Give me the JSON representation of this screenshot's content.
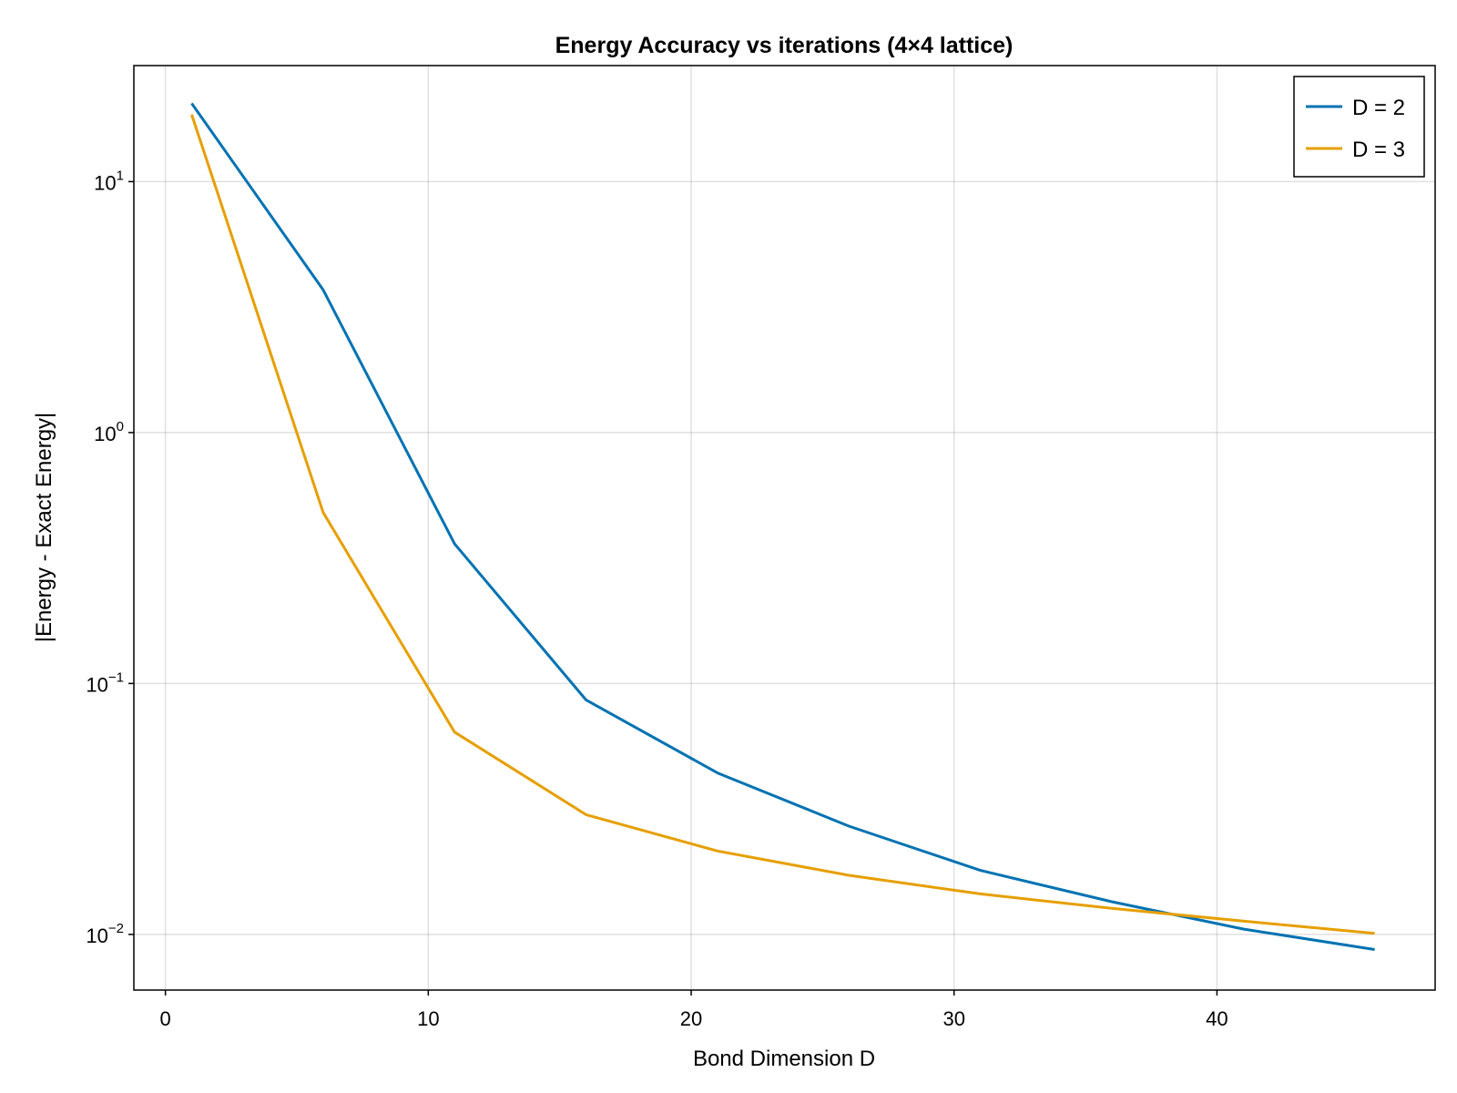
{
  "chart_data": {
    "type": "line",
    "title": "Energy Accuracy vs iterations (4×4 lattice)",
    "xlabel": "Bond Dimension D",
    "ylabel": "|Energy - Exact Energy|",
    "xlim": [
      -1.2,
      48.3
    ],
    "ylim": [
      0.006,
      29
    ],
    "yscale": "log",
    "xticks": [
      0,
      10,
      20,
      30,
      40
    ],
    "yticks": [
      {
        "value": 0.01,
        "base": "10",
        "exp": "−2"
      },
      {
        "value": 0.1,
        "base": "10",
        "exp": "−1"
      },
      {
        "value": 1,
        "base": "10",
        "exp": "0"
      },
      {
        "value": 10,
        "base": "10",
        "exp": "1"
      }
    ],
    "grid": true,
    "legend_position": "top-right",
    "x": [
      1,
      6,
      11,
      16,
      21,
      26,
      31,
      36,
      41,
      46
    ],
    "series": [
      {
        "name": "D = 2",
        "color": "#0072b2",
        "values": [
          20.5,
          3.7,
          0.36,
          0.086,
          0.044,
          0.027,
          0.018,
          0.0135,
          0.0105,
          0.0087
        ]
      },
      {
        "name": "D = 3",
        "color": "#e69f00",
        "values": [
          18.5,
          0.48,
          0.064,
          0.03,
          0.0215,
          0.0172,
          0.0145,
          0.0127,
          0.0113,
          0.0101
        ]
      }
    ]
  }
}
